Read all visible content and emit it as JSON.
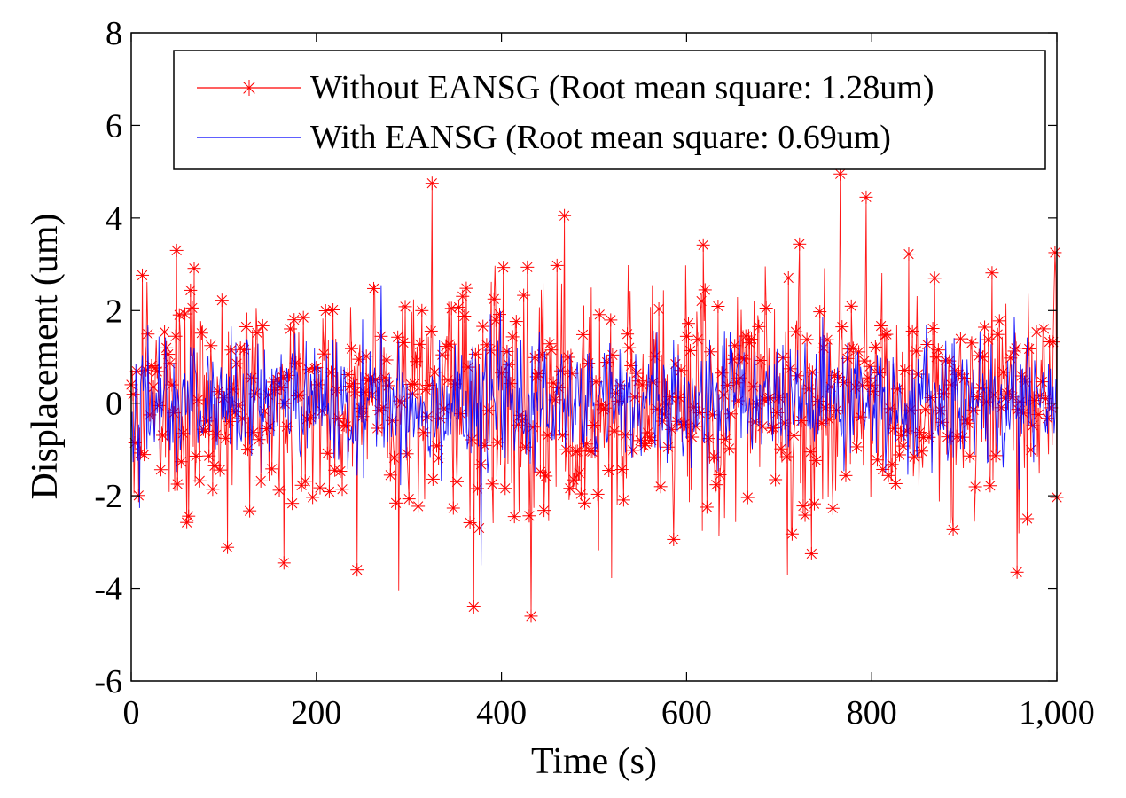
{
  "chart_data": {
    "type": "line",
    "title": "",
    "xlabel": "Time (s)",
    "ylabel": "Displacement (um)",
    "xlim": [
      0,
      1000
    ],
    "ylim": [
      -6,
      8
    ],
    "xticks": [
      0,
      200,
      400,
      600,
      800,
      1000
    ],
    "xtick_labels": [
      "0",
      "200",
      "400",
      "600",
      "800",
      "1,000"
    ],
    "yticks": [
      -6,
      -4,
      -2,
      0,
      2,
      4,
      6,
      8
    ],
    "ytick_labels": [
      "-6",
      "-4",
      "-2",
      "0",
      "2",
      "4",
      "6",
      "8"
    ],
    "grid": false,
    "legend_position": "top-right",
    "series": [
      {
        "name": "Without EANSG (Root mean square: 1.28um)",
        "color": "#ff0000",
        "marker": "asterisk",
        "generator": {
          "type": "pseudo-random",
          "n_points": 1001,
          "seed": 17,
          "rms": 1.28,
          "min": -4.6,
          "max": 4.9
        },
        "extremes": [
          {
            "x": 49,
            "y": 3.3
          },
          {
            "x": 165,
            "y": -3.45
          },
          {
            "x": 244,
            "y": -3.6
          },
          {
            "x": 325,
            "y": 4.75
          },
          {
            "x": 370,
            "y": -4.4
          },
          {
            "x": 432,
            "y": -4.6
          },
          {
            "x": 468,
            "y": 4.05
          },
          {
            "x": 735,
            "y": -3.25
          },
          {
            "x": 766,
            "y": 4.95
          },
          {
            "x": 794,
            "y": 4.45
          },
          {
            "x": 957,
            "y": -3.65
          }
        ]
      },
      {
        "name": "With EANSG (Root mean square: 0.69um)",
        "color": "#0000ff",
        "marker": "none",
        "generator": {
          "type": "pseudo-random",
          "n_points": 1001,
          "seed": 42,
          "rms": 0.69,
          "min": -3.5,
          "max": 2.6
        },
        "extremes": [
          {
            "x": 270,
            "y": 2.55
          },
          {
            "x": 378,
            "y": -3.5
          }
        ]
      }
    ]
  }
}
